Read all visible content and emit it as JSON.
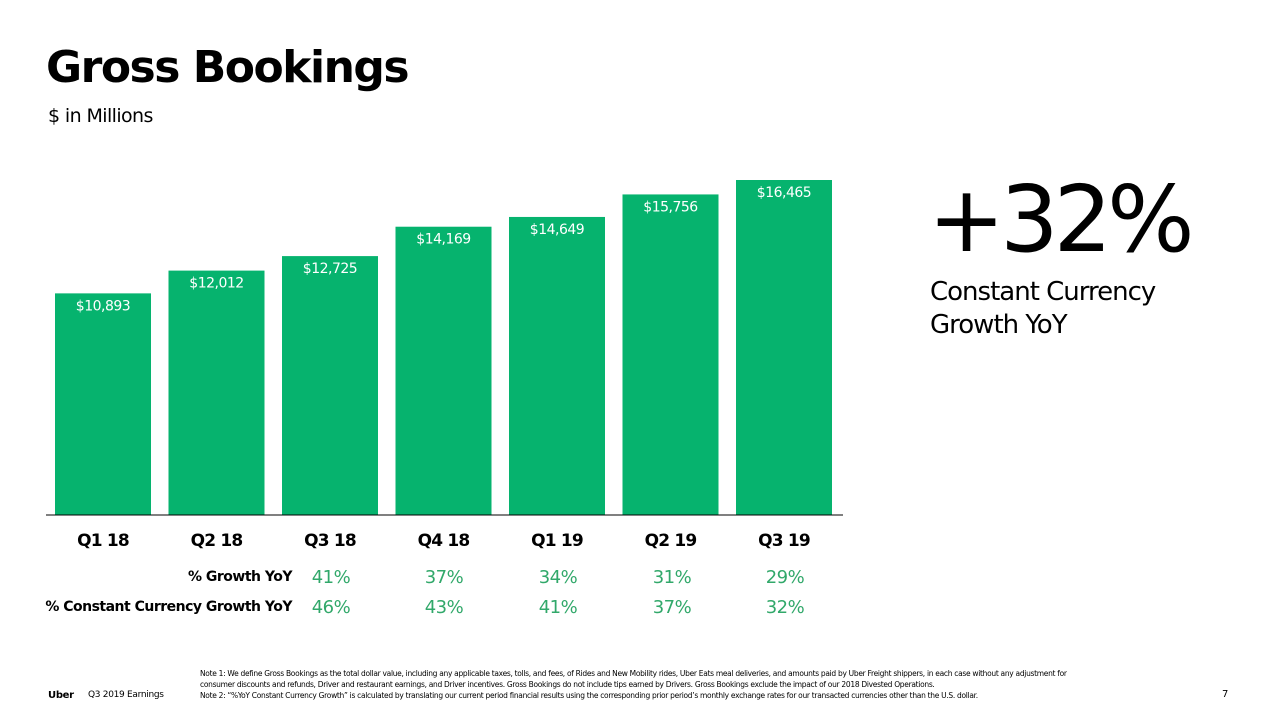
{
  "header": {
    "title": "Gross Bookings",
    "subtitle": "$ in Millions"
  },
  "chart_data": {
    "type": "bar",
    "title": "Gross Bookings",
    "subtitle": "$ in Millions",
    "categories": [
      "Q1 18",
      "Q2 18",
      "Q3 18",
      "Q4 18",
      "Q1 19",
      "Q2 19",
      "Q3 19"
    ],
    "values": [
      10893,
      12012,
      12725,
      14169,
      14649,
      15756,
      16465
    ],
    "value_labels": [
      "$10,893",
      "$12,012",
      "$12,725",
      "$14,169",
      "$14,649",
      "$15,756",
      "$16,465"
    ],
    "bar_color": "#06b36e",
    "grid": false,
    "legend": "none"
  },
  "growth_table": {
    "rows": [
      {
        "label": "% Growth YoY",
        "values": [
          "41%",
          "37%",
          "34%",
          "31%",
          "29%"
        ]
      },
      {
        "label": "% Constant Currency Growth YoY",
        "values": [
          "46%",
          "43%",
          "41%",
          "37%",
          "32%"
        ]
      }
    ],
    "value_color": "#31a86a"
  },
  "highlight": {
    "value": "+32%",
    "caption_line1": "Constant Currency",
    "caption_line2": "Growth YoY"
  },
  "notes": {
    "note1_line1": "Note 1: We define Gross Bookings as the total dollar value, including any applicable taxes, tolls, and fees, of Rides and New Mobility rides, Uber Eats meal deliveries, and amounts paid by Uber Freight shippers, in each case without any adjustment for",
    "note1_line2": "consumer discounts and refunds, Driver and restaurant earnings, and Driver incentives. Gross Bookings do not include tips earned by Drivers. Gross Bookings exclude the impact of our 2018 Divested Operations.",
    "note2": "Note 2: “%YoY Constant Currency Growth” is calculated by translating our current period financial results using the corresponding prior period’s monthly exchange rates for our transacted currencies other than the U.S. dollar."
  },
  "footer": {
    "brand": "Uber",
    "event": "Q3 2019 Earnings",
    "page": "7"
  }
}
